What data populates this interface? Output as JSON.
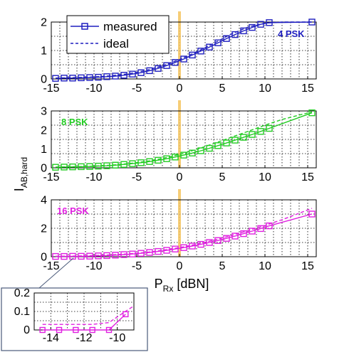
{
  "chart_data": [
    {
      "type": "line",
      "panel_label": "4 PSK",
      "color": "#1f1fbf",
      "xlim": [
        -15,
        16
      ],
      "ylim": [
        0,
        2
      ],
      "yticks": [
        0,
        1,
        2
      ],
      "xticks": [
        -15,
        -10,
        -5,
        0,
        5,
        10,
        15
      ],
      "series": [
        {
          "name": "measured",
          "style": "solid-square-markers",
          "x": [
            -14.5,
            -13.5,
            -12.5,
            -11.5,
            -10.5,
            -9.5,
            -8.5,
            -7.5,
            -6.5,
            -5.5,
            -4.5,
            -3.5,
            -2.5,
            -1.5,
            -0.5,
            0.5,
            1.5,
            2.5,
            3.5,
            4.5,
            5.5,
            6.5,
            7.5,
            8.5,
            9.5,
            10.5,
            15.5
          ],
          "y": [
            0.02,
            0.03,
            0.03,
            0.04,
            0.05,
            0.06,
            0.08,
            0.1,
            0.13,
            0.17,
            0.22,
            0.29,
            0.37,
            0.47,
            0.58,
            0.7,
            0.84,
            0.98,
            1.12,
            1.27,
            1.42,
            1.56,
            1.69,
            1.81,
            1.92,
            1.98,
            2.0
          ]
        },
        {
          "name": "ideal",
          "style": "dashed",
          "x": [
            -14.5,
            -12,
            -10,
            -8,
            -6,
            -4,
            -2,
            0,
            2,
            4,
            6,
            8,
            10,
            12,
            15.5
          ],
          "y": [
            0.03,
            0.05,
            0.07,
            0.11,
            0.18,
            0.29,
            0.46,
            0.68,
            0.95,
            1.25,
            1.57,
            1.82,
            1.96,
            2.0,
            2.0
          ]
        }
      ]
    },
    {
      "type": "line",
      "panel_label": "8 PSK",
      "color": "#22cc22",
      "xlim": [
        -15,
        16
      ],
      "ylim": [
        0,
        3
      ],
      "yticks": [
        0,
        1,
        2,
        3
      ],
      "xticks": [
        -15,
        -10,
        -5,
        0,
        5,
        10,
        15
      ],
      "series": [
        {
          "name": "measured",
          "style": "solid-square-markers",
          "x": [
            -14.5,
            -13.5,
            -12.5,
            -11.5,
            -10.5,
            -9.5,
            -8.5,
            -7.5,
            -6.5,
            -5.5,
            -4.5,
            -3.5,
            -2.5,
            -1.5,
            -0.5,
            0.5,
            1.5,
            2.5,
            3.5,
            4.5,
            5.5,
            6.5,
            7.5,
            8.5,
            9.5,
            10.5,
            15.5
          ],
          "y": [
            0.03,
            0.04,
            0.05,
            0.06,
            0.07,
            0.09,
            0.11,
            0.14,
            0.18,
            0.22,
            0.27,
            0.33,
            0.4,
            0.48,
            0.57,
            0.67,
            0.78,
            0.9,
            1.03,
            1.17,
            1.31,
            1.46,
            1.61,
            1.76,
            1.92,
            2.08,
            2.9
          ]
        },
        {
          "name": "ideal",
          "style": "dashed",
          "x": [
            -14.5,
            -12,
            -10,
            -8,
            -6,
            -4,
            -2,
            0,
            2,
            4,
            6,
            8,
            10,
            12,
            15.5
          ],
          "y": [
            0.04,
            0.06,
            0.09,
            0.14,
            0.22,
            0.33,
            0.49,
            0.7,
            0.97,
            1.28,
            1.6,
            1.92,
            2.25,
            2.55,
            2.95
          ]
        }
      ]
    },
    {
      "type": "line",
      "panel_label": "16 PSK",
      "color": "#e020e0",
      "xlim": [
        -15,
        16
      ],
      "ylim": [
        0,
        4
      ],
      "yticks": [
        0,
        2,
        4
      ],
      "xticks": [
        -15,
        -10,
        -5,
        0,
        5,
        10,
        15
      ],
      "xlabel_main": "P",
      "xlabel_sub": "Rx",
      "xlabel_unit": " [dBN]",
      "series": [
        {
          "name": "measured",
          "style": "solid-square-markers",
          "x": [
            -14.5,
            -13.5,
            -12.5,
            -11.5,
            -10.5,
            -9.5,
            -8.5,
            -7.5,
            -6.5,
            -5.5,
            -4.5,
            -3.5,
            -2.5,
            -1.5,
            -0.5,
            0.5,
            1.5,
            2.5,
            3.5,
            4.5,
            5.5,
            6.5,
            7.5,
            8.5,
            9.5,
            10.5,
            15.5
          ],
          "y": [
            0.02,
            0.02,
            0.03,
            0.03,
            0.04,
            0.06,
            0.08,
            0.11,
            0.15,
            0.19,
            0.24,
            0.3,
            0.37,
            0.45,
            0.54,
            0.64,
            0.75,
            0.87,
            1.0,
            1.14,
            1.29,
            1.45,
            1.62,
            1.8,
            1.98,
            2.17,
            3.0
          ]
        },
        {
          "name": "ideal",
          "style": "dashed",
          "x": [
            -14.5,
            -12,
            -10,
            -8,
            -6,
            -4,
            -2,
            0,
            2,
            4,
            6,
            8,
            10,
            12,
            15.5
          ],
          "y": [
            0.03,
            0.05,
            0.08,
            0.13,
            0.2,
            0.3,
            0.45,
            0.64,
            0.88,
            1.16,
            1.48,
            1.83,
            2.2,
            2.6,
            3.4
          ]
        }
      ]
    },
    {
      "type": "line",
      "panel_label": "",
      "color": "#e020e0",
      "xlim": [
        -15,
        -9
      ],
      "ylim": [
        0,
        0.2
      ],
      "yticks": [
        0,
        0.1,
        0.2
      ],
      "ytick_labels": [
        "0",
        "0.1",
        "0.2"
      ],
      "xticks": [
        -14,
        -12,
        -10
      ],
      "series": [
        {
          "name": "measured",
          "style": "solid-square-markers",
          "x": [
            -14.5,
            -13.5,
            -12.5,
            -11.5,
            -10.5,
            -9.5
          ],
          "y": [
            0.0,
            0.0,
            0.0,
            0.0,
            0.0,
            0.085
          ]
        },
        {
          "name": "ideal",
          "style": "dashed",
          "x": [
            -14.5,
            -13,
            -11.5,
            -10.5,
            -9.6,
            -9.0
          ],
          "y": [
            0.03,
            0.03,
            0.03,
            0.04,
            0.095,
            0.13
          ]
        }
      ]
    }
  ],
  "legend": {
    "measured_label": "measured",
    "ideal_label": "ideal"
  },
  "ylabel": {
    "main": "I",
    "sub": "AB,hard"
  },
  "marker_line_x": 0,
  "colors": {
    "highlight_line": "#f5c560",
    "inset_frame": "#4a5a7a"
  }
}
